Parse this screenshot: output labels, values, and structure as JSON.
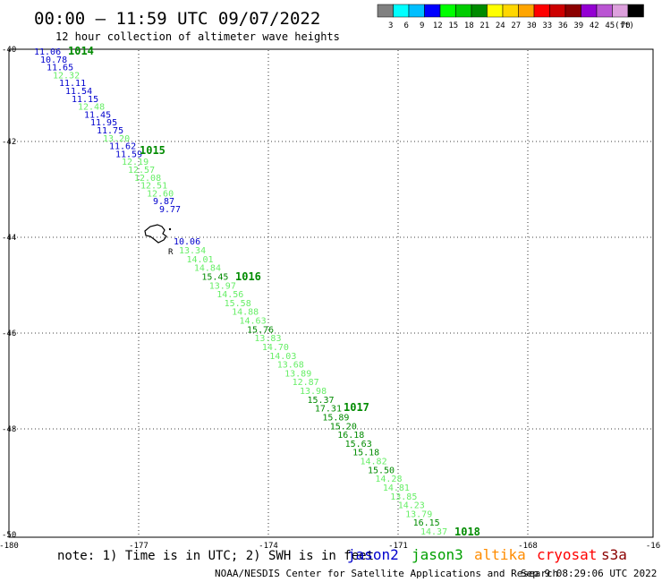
{
  "header": {
    "title": "00:00 – 11:59 UTC 09/07/2022",
    "subtitle": "12 hour collection of altimeter wave heights"
  },
  "legend": {
    "colors": [
      "#808080",
      "#00ffff",
      "#00bfff",
      "#0000ff",
      "#00ff00",
      "#00cd00",
      "#008b00",
      "#ffff00",
      "#ffd700",
      "#ffa500",
      "#ff0000",
      "#cd0000",
      "#8b0000",
      "#9400d3",
      "#ba55d3",
      "#dda0dd",
      "#000000"
    ],
    "labels": [
      "3",
      "6",
      "9",
      "12",
      "15",
      "18",
      "21",
      "24",
      "27",
      "30",
      "33",
      "36",
      "39",
      "42",
      "45",
      "70",
      "(ft)"
    ]
  },
  "map": {
    "lon_labels": [
      "-180",
      "-177",
      "-174",
      "-171",
      "-168",
      "-16"
    ],
    "lat_labels": [
      "-40",
      "-42",
      "-44",
      "-46",
      "-48",
      "-50"
    ],
    "island_label": "R"
  },
  "track": {
    "low_points": [
      {
        "v": "11.06",
        "color": "#0000cd"
      },
      {
        "v": "10.78",
        "color": "#0000cd"
      },
      {
        "v": "11.65",
        "color": "#0000cd"
      },
      {
        "v": "12.32",
        "color": "#66ee66"
      },
      {
        "v": "11.11",
        "color": "#0000cd"
      },
      {
        "v": "11.54",
        "color": "#0000cd"
      },
      {
        "v": "11.15",
        "color": "#0000cd"
      },
      {
        "v": "12.48",
        "color": "#66ee66"
      },
      {
        "v": "11.45",
        "color": "#0000cd"
      },
      {
        "v": "11.95",
        "color": "#0000cd"
      },
      {
        "v": "11.75",
        "color": "#0000cd"
      },
      {
        "v": "13.20",
        "color": "#66ee66"
      },
      {
        "v": "11.62",
        "color": "#0000cd"
      },
      {
        "v": "11.59",
        "color": "#0000cd"
      },
      {
        "v": "12.19",
        "color": "#66ee66"
      },
      {
        "v": "12.57",
        "color": "#66ee66"
      },
      {
        "v": "12.08",
        "color": "#66ee66"
      },
      {
        "v": "12.51",
        "color": "#66ee66"
      },
      {
        "v": "12.60",
        "color": "#66ee66"
      },
      {
        "v": "9.87",
        "color": "#0000cd"
      },
      {
        "v": "9.77",
        "color": "#0000cd"
      },
      {
        "v": "10.06",
        "color": "#0000cd"
      }
    ],
    "high_points": [
      {
        "v": "13.34",
        "color": "#66ee66"
      },
      {
        "v": "14.01",
        "color": "#66ee66"
      },
      {
        "v": "14.84",
        "color": "#66ee66"
      },
      {
        "v": "15.45",
        "color": "#008b00"
      },
      {
        "v": "13.97",
        "color": "#66ee66"
      },
      {
        "v": "14.56",
        "color": "#66ee66"
      },
      {
        "v": "15.58",
        "color": "#66ee66"
      },
      {
        "v": "14.88",
        "color": "#66ee66"
      },
      {
        "v": "14.63",
        "color": "#66ee66"
      },
      {
        "v": "15.76",
        "color": "#008b00"
      },
      {
        "v": "13.83",
        "color": "#66ee66"
      },
      {
        "v": "14.70",
        "color": "#66ee66"
      },
      {
        "v": "14.03",
        "color": "#66ee66"
      },
      {
        "v": "13.68",
        "color": "#66ee66"
      },
      {
        "v": "13.89",
        "color": "#66ee66"
      },
      {
        "v": "12.87",
        "color": "#66ee66"
      },
      {
        "v": "13.98",
        "color": "#66ee66"
      },
      {
        "v": "15.37",
        "color": "#008b00"
      },
      {
        "v": "17.31",
        "color": "#008b00"
      },
      {
        "v": "15.89",
        "color": "#008b00"
      },
      {
        "v": "15.20",
        "color": "#008b00"
      },
      {
        "v": "16.18",
        "color": "#008b00"
      },
      {
        "v": "15.63",
        "color": "#008b00"
      },
      {
        "v": "15.18",
        "color": "#008b00"
      },
      {
        "v": "14.82",
        "color": "#66ee66"
      },
      {
        "v": "15.50",
        "color": "#008b00"
      },
      {
        "v": "14.28",
        "color": "#66ee66"
      },
      {
        "v": "14.81",
        "color": "#66ee66"
      },
      {
        "v": "13.85",
        "color": "#66ee66"
      },
      {
        "v": "14.23",
        "color": "#66ee66"
      },
      {
        "v": "13.79",
        "color": "#66ee66"
      },
      {
        "v": "16.15",
        "color": "#008b00"
      },
      {
        "v": "14.37",
        "color": "#66ee66"
      }
    ],
    "times": [
      {
        "label": "1014"
      },
      {
        "label": "1015"
      },
      {
        "label": "1016"
      },
      {
        "label": "1017"
      },
      {
        "label": "1018"
      }
    ]
  },
  "footer": {
    "note": "note: 1) Time is in UTC; 2) SWH is in feet",
    "satellites": [
      {
        "name": "jason2",
        "color": "#0000cd"
      },
      {
        "name": "jason3",
        "color": "#00a000"
      },
      {
        "name": "altika",
        "color": "#ff8c00"
      },
      {
        "name": "cryosat",
        "color": "#ff0000"
      },
      {
        "name": "s3a",
        "color": "#8b0000"
      }
    ],
    "credit": "NOAA/NESDIS Center for Satellite Applications and Research",
    "timestamp": "Sep  9 08:29:06 UTC 2022"
  }
}
